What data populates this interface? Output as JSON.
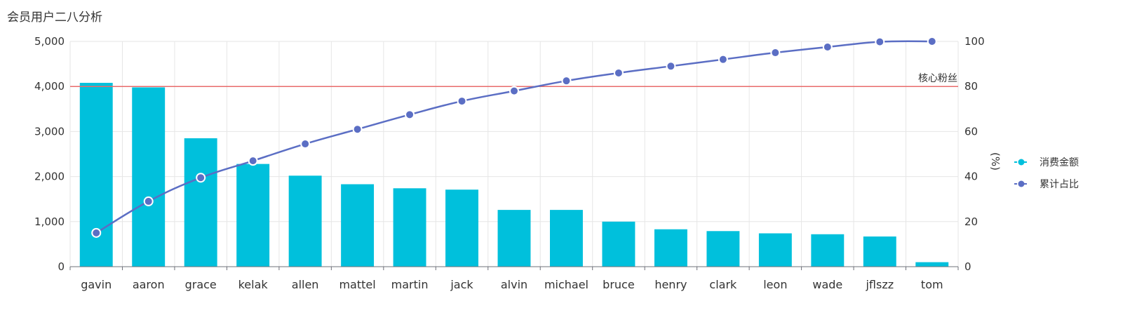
{
  "chart_data": {
    "type": "bar",
    "title": "会员用户二八分析",
    "categories": [
      "gavin",
      "aaron",
      "grace",
      "kelak",
      "allen",
      "mattel",
      "martin",
      "jack",
      "alvin",
      "michael",
      "bruce",
      "henry",
      "clark",
      "leon",
      "wade",
      "jflszz",
      "tom"
    ],
    "series": [
      {
        "name": "消费金额",
        "type": "bar",
        "axis": "left",
        "color": "#00c0dc",
        "values": [
          4080,
          3980,
          2850,
          2280,
          2020,
          1830,
          1740,
          1710,
          1260,
          1260,
          1000,
          830,
          790,
          740,
          720,
          670,
          100
        ]
      },
      {
        "name": "累计占比",
        "type": "line",
        "axis": "right",
        "color": "#5b6ec4",
        "values": [
          15,
          29,
          39.5,
          47,
          54.5,
          61,
          67.5,
          73.5,
          78,
          82.5,
          86,
          89,
          92,
          95,
          97.5,
          99.8,
          100
        ]
      }
    ],
    "y_left": {
      "min": 0,
      "max": 5000,
      "ticks": [
        "0",
        "1,000",
        "2,000",
        "3,000",
        "4,000",
        "5,000"
      ]
    },
    "y_right": {
      "min": 0,
      "max": 100,
      "label": "(%)",
      "ticks": [
        "0",
        "20",
        "40",
        "60",
        "80",
        "100"
      ]
    },
    "mark_line": {
      "value": 4000,
      "axis": "left",
      "label": "核心粉丝",
      "color": "#e86b6b"
    },
    "grid": true,
    "legend_position": "right"
  }
}
